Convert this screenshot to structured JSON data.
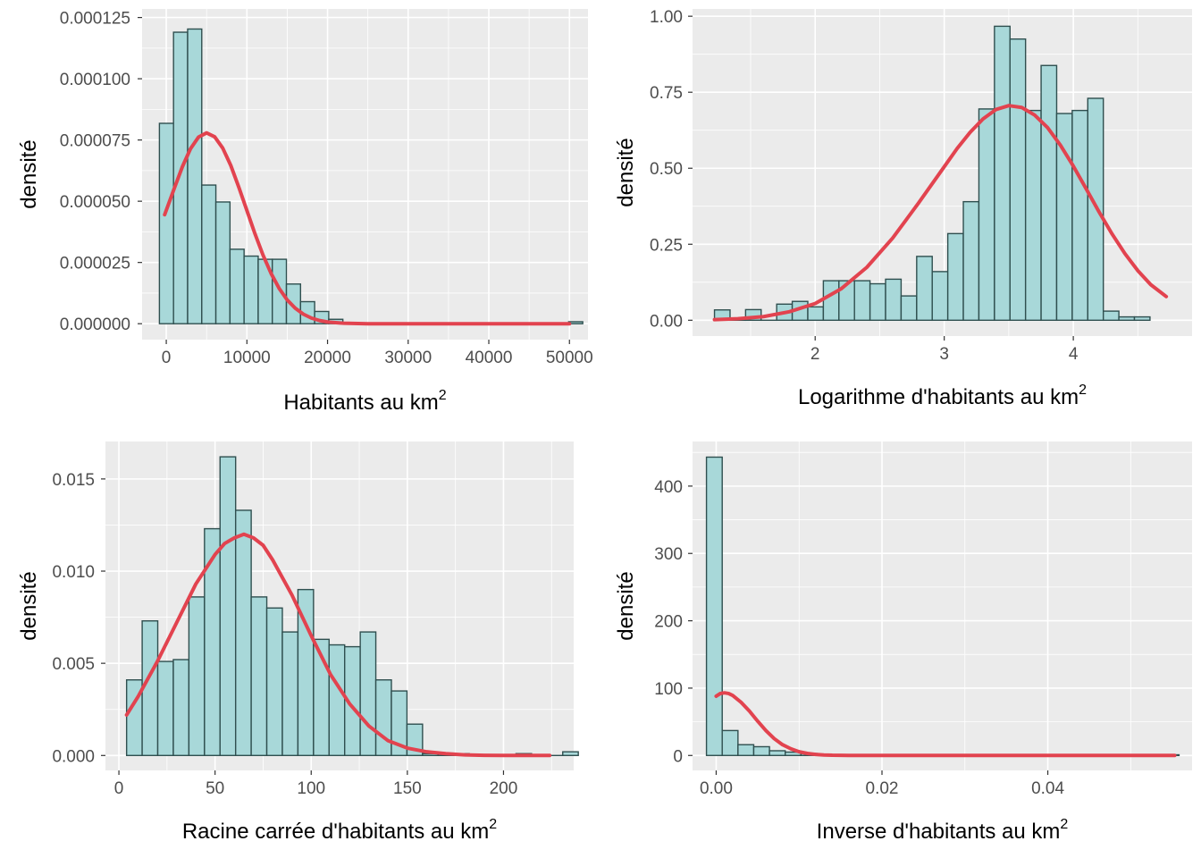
{
  "colors": {
    "panel_background": "#ebebeb",
    "grid": "#ffffff",
    "bar_fill": "#a8d8d9",
    "bar_stroke": "#2f4f4f",
    "curve": "#e2434f",
    "tick_text": "#4d4d4d",
    "title_text": "#000000"
  },
  "chart_data": [
    {
      "type": "histogram",
      "xlabel": "Habitants au km",
      "xlabel_sup": "2",
      "ylabel": "densité",
      "xlim": [
        -3000,
        52300
      ],
      "ylim": [
        -6.5e-06,
        0.0001285
      ],
      "xticks": [
        0,
        10000,
        20000,
        30000,
        40000,
        50000
      ],
      "xtick_labels": [
        "0",
        "10000",
        "20000",
        "30000",
        "40000",
        "50000"
      ],
      "yticks": [
        0,
        2.5e-05,
        5e-05,
        7.5e-05,
        0.0001,
        0.000125
      ],
      "ytick_labels": [
        "0.000000",
        "0.000025",
        "0.000050",
        "0.000075",
        "0.000100",
        "0.000125"
      ],
      "bin_start": -850,
      "bin_width": 1750,
      "bars": [
        8.18e-05,
        0.000119,
        0.0001203,
        5.66e-05,
        4.97e-05,
        3.04e-05,
        2.76e-05,
        2.63e-05,
        2.63e-05,
        1.62e-05,
        9e-06,
        5e-06,
        1.8e-06,
        0,
        0,
        0,
        0,
        0,
        0,
        0,
        0,
        0,
        0,
        0,
        0,
        0,
        0,
        0,
        0,
        8e-07
      ],
      "curve": {
        "x": [
          -200,
          1000,
          2000,
          3000,
          4000,
          5000,
          6000,
          7000,
          8000,
          9000,
          10000,
          11000,
          12000,
          13000,
          14000,
          15000,
          16000,
          17000,
          18000,
          19000,
          20000,
          22000,
          25000,
          30000,
          35000,
          40000,
          45000,
          50000
        ],
        "y": [
          4.45e-05,
          5.53e-05,
          6.41e-05,
          7.14e-05,
          7.62e-05,
          7.79e-05,
          7.63e-05,
          7.17e-05,
          6.46e-05,
          5.57e-05,
          4.62e-05,
          3.67e-05,
          2.8e-05,
          2.05e-05,
          1.44e-05,
          9.7e-06,
          6.3e-06,
          3.9e-06,
          2.3e-06,
          1.3e-06,
          7e-07,
          2e-07,
          0,
          0,
          0,
          0,
          0,
          0
        ]
      }
    },
    {
      "type": "histogram",
      "xlabel": "Logarithme d'habitants au km",
      "xlabel_sup": "2",
      "ylabel": "densité",
      "xlim": [
        1.05,
        4.92
      ],
      "ylim": [
        -0.052,
        1.024
      ],
      "xticks": [
        2,
        3,
        4
      ],
      "xtick_labels": [
        "2",
        "3",
        "4"
      ],
      "yticks": [
        0,
        0.25,
        0.5,
        0.75,
        1.0
      ],
      "ytick_labels": [
        "0.00",
        "0.25",
        "0.50",
        "0.75",
        "1.00"
      ],
      "bin_start": 1.22,
      "bin_width": 0.1205,
      "bars": [
        0.034,
        0.0,
        0.035,
        0.0,
        0.053,
        0.062,
        0.044,
        0.13,
        0.13,
        0.13,
        0.12,
        0.135,
        0.08,
        0.21,
        0.16,
        0.285,
        0.39,
        0.695,
        0.967,
        0.925,
        0.69,
        0.838,
        0.68,
        0.69,
        0.73,
        0.03,
        0.011,
        0.011
      ],
      "curve": {
        "x": [
          1.22,
          1.4,
          1.6,
          1.8,
          2.0,
          2.2,
          2.4,
          2.6,
          2.8,
          3.0,
          3.1,
          3.2,
          3.3,
          3.4,
          3.5,
          3.6,
          3.7,
          3.8,
          3.9,
          4.0,
          4.1,
          4.2,
          4.3,
          4.4,
          4.5,
          4.6,
          4.72
        ],
        "y": [
          0.002,
          0.005,
          0.012,
          0.028,
          0.055,
          0.103,
          0.174,
          0.27,
          0.385,
          0.505,
          0.565,
          0.618,
          0.662,
          0.693,
          0.706,
          0.7,
          0.675,
          0.634,
          0.576,
          0.507,
          0.432,
          0.356,
          0.284,
          0.219,
          0.163,
          0.117,
          0.078
        ]
      }
    },
    {
      "type": "histogram",
      "xlabel": "Racine carrée d'habitants au km",
      "xlabel_sup": "2",
      "ylabel": "densité",
      "xlim": [
        -7,
        236.5
      ],
      "ylim": [
        -0.00081,
        0.01703
      ],
      "xticks": [
        0,
        50,
        100,
        150,
        200
      ],
      "xtick_labels": [
        "0",
        "50",
        "100",
        "150",
        "200"
      ],
      "yticks": [
        0,
        0.005,
        0.01,
        0.015
      ],
      "ytick_labels": [
        "0.000",
        "0.005",
        "0.010",
        "0.015"
      ],
      "bin_start": 4,
      "bin_width": 8.1,
      "bars": [
        0.0041,
        0.0073,
        0.0051,
        0.0052,
        0.0086,
        0.0123,
        0.0162,
        0.0133,
        0.0086,
        0.008,
        0.0067,
        0.009,
        0.0063,
        0.006,
        0.0059,
        0.0067,
        0.0041,
        0.0035,
        0.0017,
        0.0001,
        0.0001,
        0.0001,
        0.0,
        0.0,
        0.0,
        0.0001,
        0.0,
        0.0,
        0.0002
      ],
      "curve": {
        "x": [
          4,
          10,
          20,
          30,
          40,
          50,
          55,
          60,
          65,
          70,
          75,
          80,
          90,
          100,
          110,
          120,
          130,
          140,
          150,
          160,
          170,
          180,
          190,
          200,
          210,
          224
        ],
        "y": [
          0.0022,
          0.0032,
          0.0051,
          0.0072,
          0.0093,
          0.0109,
          0.0115,
          0.0118,
          0.012,
          0.0118,
          0.0114,
          0.0106,
          0.0087,
          0.0065,
          0.0044,
          0.0028,
          0.0016,
          0.0008,
          0.0004,
          0.0002,
          0.0001,
          3e-05,
          1e-05,
          0.0,
          0.0,
          0.0
        ]
      }
    },
    {
      "type": "histogram",
      "xlabel": "Inverse d'habitants au km",
      "xlabel_sup": "2",
      "ylabel": "densité",
      "xlim": [
        -0.00285,
        0.0574
      ],
      "ylim": [
        -22.2,
        466.2
      ],
      "xticks": [
        0,
        0.02,
        0.04
      ],
      "xtick_labels": [
        "0.00",
        "0.02",
        "0.04"
      ],
      "yticks": [
        0,
        100,
        200,
        300,
        400
      ],
      "ytick_labels": [
        "0",
        "100",
        "200",
        "300",
        "400"
      ],
      "bin_start": -0.00117,
      "bin_width": 0.0019,
      "bars": [
        443,
        37,
        16,
        13,
        7,
        5,
        3,
        1,
        0,
        0,
        0,
        0,
        0,
        0,
        0,
        0,
        0,
        0,
        0,
        0,
        0,
        0,
        0,
        0,
        0,
        0,
        0,
        0,
        0,
        1
      ],
      "curve": {
        "x": [
          0,
          0.0005,
          0.001,
          0.0015,
          0.002,
          0.003,
          0.004,
          0.005,
          0.006,
          0.007,
          0.008,
          0.009,
          0.01,
          0.011,
          0.012,
          0.013,
          0.014,
          0.016,
          0.02,
          0.03,
          0.04,
          0.05,
          0.0553
        ],
        "y": [
          88,
          92,
          93,
          92,
          89,
          79,
          66,
          51,
          37,
          25,
          16,
          10,
          5.5,
          3,
          1.5,
          0.7,
          0.3,
          0.05,
          0,
          0,
          0,
          0,
          0
        ]
      }
    }
  ]
}
